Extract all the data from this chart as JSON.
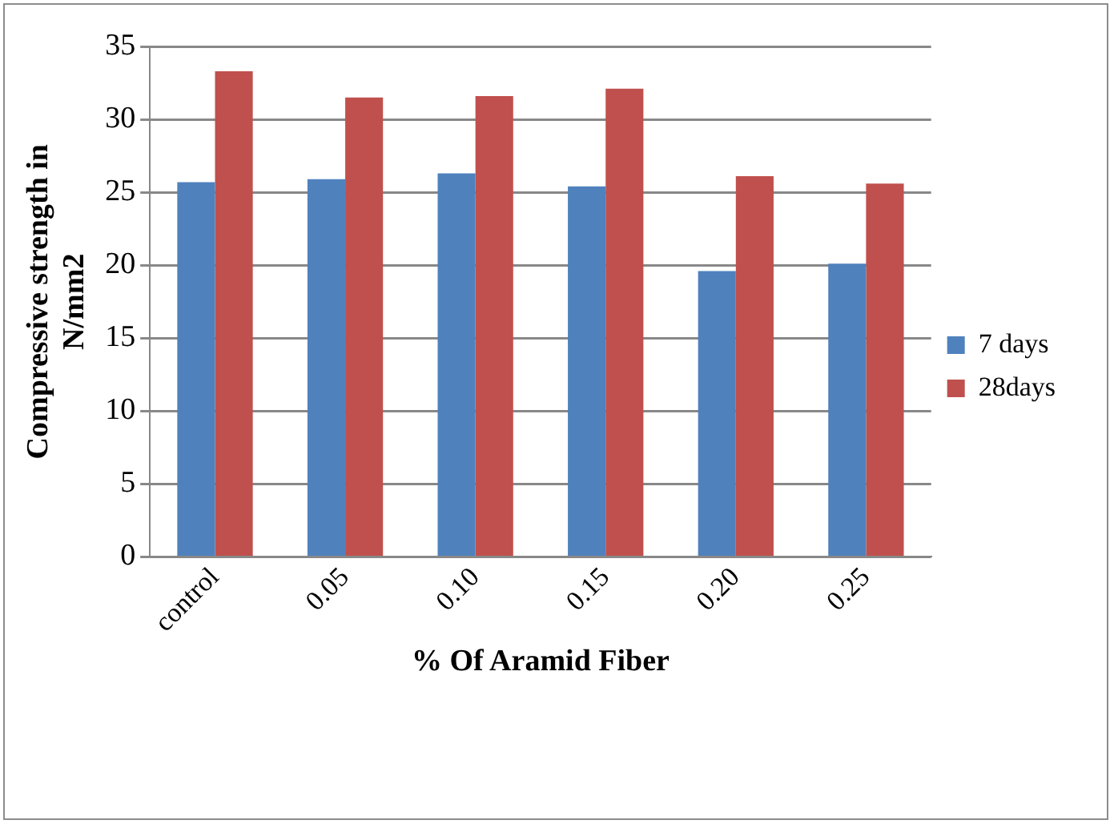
{
  "chart_data": {
    "type": "bar",
    "xlabel": "% Of Aramid Fiber",
    "ylabel": "Compressive strength in N/mm2",
    "categories": [
      "control",
      "0.05",
      "0.10",
      "0.15",
      "0.20",
      "0.25"
    ],
    "series": [
      {
        "name": "7 days",
        "color": "#4f81bd",
        "values": [
          25.7,
          25.9,
          26.3,
          25.4,
          19.6,
          20.1
        ]
      },
      {
        "name": "28days",
        "color": "#c0504d",
        "values": [
          33.3,
          31.5,
          31.6,
          32.1,
          26.1,
          25.6
        ]
      }
    ],
    "ylim": [
      0,
      35
    ],
    "yticks": [
      0,
      5,
      10,
      15,
      20,
      25,
      30,
      35
    ],
    "grid": "y",
    "legend": "right"
  }
}
